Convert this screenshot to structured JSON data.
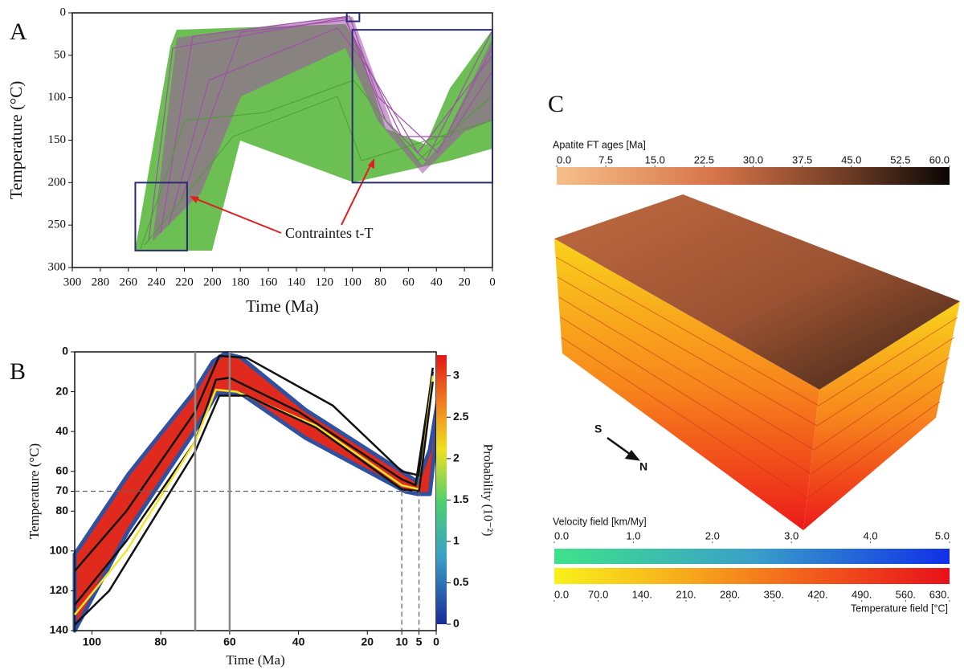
{
  "chart_data": [
    {
      "type": "line",
      "label": "A",
      "xlabel": "Time (Ma)",
      "ylabel": "Temperature (°C)",
      "xlim": [
        300,
        0
      ],
      "ylim": [
        300,
        0
      ],
      "xticks": [
        300,
        280,
        260,
        240,
        220,
        200,
        180,
        160,
        140,
        120,
        100,
        80,
        60,
        40,
        20,
        0
      ],
      "yticks": [
        0,
        50,
        100,
        150,
        200,
        250,
        300
      ],
      "annotation": "Contraintes t-T",
      "constraints": [
        {
          "x": [
            255,
            218
          ],
          "y": [
            280,
            200
          ]
        },
        {
          "x": [
            100,
            0
          ],
          "y": [
            200,
            20
          ]
        },
        {
          "x": [
            104,
            95
          ],
          "y": [
            10,
            0
          ]
        }
      ]
    },
    {
      "type": "density",
      "label": "B",
      "xlabel": "Time (Ma)",
      "ylabel": "Temperature (°C)",
      "xlim": [
        105,
        0
      ],
      "ylim": [
        140,
        0
      ],
      "xticks": [
        100,
        80,
        60,
        40,
        20,
        10,
        5,
        0
      ],
      "yticks": [
        0,
        20,
        40,
        60,
        70,
        80,
        100,
        120,
        140
      ],
      "hlines": [
        70
      ],
      "vlines": [
        70,
        60
      ],
      "dashed_vlines": [
        10,
        5
      ],
      "series": [
        {
          "color": "#111111",
          "x": [
            105,
            90,
            70,
            63,
            55,
            30,
            10,
            5,
            1
          ],
          "values": [
            110,
            80,
            30,
            2,
            3,
            27,
            60,
            62,
            8
          ]
        },
        {
          "color": "#111111",
          "x": [
            105,
            90,
            70,
            64,
            60,
            40,
            10,
            6,
            1
          ],
          "values": [
            127,
            95,
            45,
            14,
            13,
            30,
            64,
            67,
            10
          ]
        },
        {
          "color": "#f5e52a",
          "x": [
            105,
            90,
            70,
            64,
            58,
            35,
            10,
            5,
            1
          ],
          "values": [
            132,
            100,
            45,
            19,
            20,
            37,
            67,
            69,
            12
          ]
        },
        {
          "color": "#111111",
          "x": [
            105,
            95,
            70,
            63,
            55,
            35,
            10,
            5,
            1
          ],
          "values": [
            137,
            120,
            50,
            22,
            22,
            38,
            69,
            70,
            15
          ]
        }
      ],
      "colorbar": {
        "title": "Probability (10⁻²)",
        "lim": [
          0,
          3.25
        ],
        "ticks": [
          0,
          0.5,
          1,
          1.5,
          2,
          2.5,
          3
        ]
      }
    },
    {
      "type": "surface",
      "label": "C",
      "compass": [
        "S",
        "N"
      ],
      "colorbars": [
        {
          "title": "Apatite FT ages [Ma]",
          "lim": [
            0,
            60
          ],
          "ticks": [
            {
              "value": 0,
              "label": "0.0"
            },
            {
              "value": 7.5,
              "label": "7.5"
            },
            {
              "value": 15,
              "label": "15.0"
            },
            {
              "value": 22.5,
              "label": "22.5"
            },
            {
              "value": 30,
              "label": "30.0"
            },
            {
              "value": 37.5,
              "label": "37.5"
            },
            {
              "value": 45,
              "label": "45.0"
            },
            {
              "value": 52.5,
              "label": "52.5"
            },
            {
              "value": 60,
              "label": "60.0"
            }
          ]
        },
        {
          "title": "Velocity field [km/My]",
          "lim": [
            0,
            5
          ],
          "ticks": [
            {
              "value": 0,
              "label": "0.0"
            },
            {
              "value": 1,
              "label": "1.0"
            },
            {
              "value": 2,
              "label": "2.0"
            },
            {
              "value": 3,
              "label": "3.0"
            },
            {
              "value": 4,
              "label": "4.0"
            },
            {
              "value": 5,
              "label": "5.0"
            }
          ]
        },
        {
          "title": "Temperature field [°C]",
          "lim": [
            0,
            630
          ],
          "ticks": [
            {
              "value": 0,
              "label": "0.0"
            },
            {
              "value": 70,
              "label": "70.0"
            },
            {
              "value": 140,
              "label": "140."
            },
            {
              "value": 210,
              "label": "210."
            },
            {
              "value": 280,
              "label": "280."
            },
            {
              "value": 350,
              "label": "350."
            },
            {
              "value": 420,
              "label": "420."
            },
            {
              "value": 490,
              "label": "490."
            },
            {
              "value": 560,
              "label": "560."
            },
            {
              "value": 630,
              "label": "630."
            }
          ]
        }
      ]
    }
  ]
}
